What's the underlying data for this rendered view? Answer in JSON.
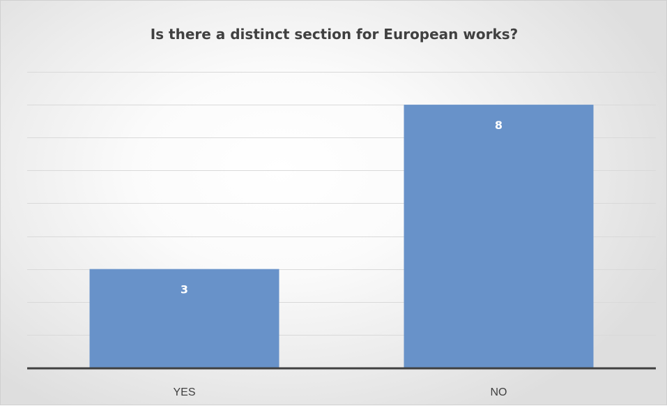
{
  "chart_data": {
    "type": "bar",
    "title": "Is there a distinct section for European works?",
    "categories": [
      "YES",
      "NO"
    ],
    "values": [
      3,
      8
    ],
    "data_labels": [
      "3",
      "8"
    ],
    "ylim": [
      0,
      9
    ],
    "y_gridline_step": 1,
    "show_y_axis_labels": false,
    "grid": true,
    "legend": "none",
    "colors": {
      "bar": "#6892c9",
      "gridline": "#d9d9d9",
      "baseline": "#404040",
      "title": "#404040"
    }
  }
}
